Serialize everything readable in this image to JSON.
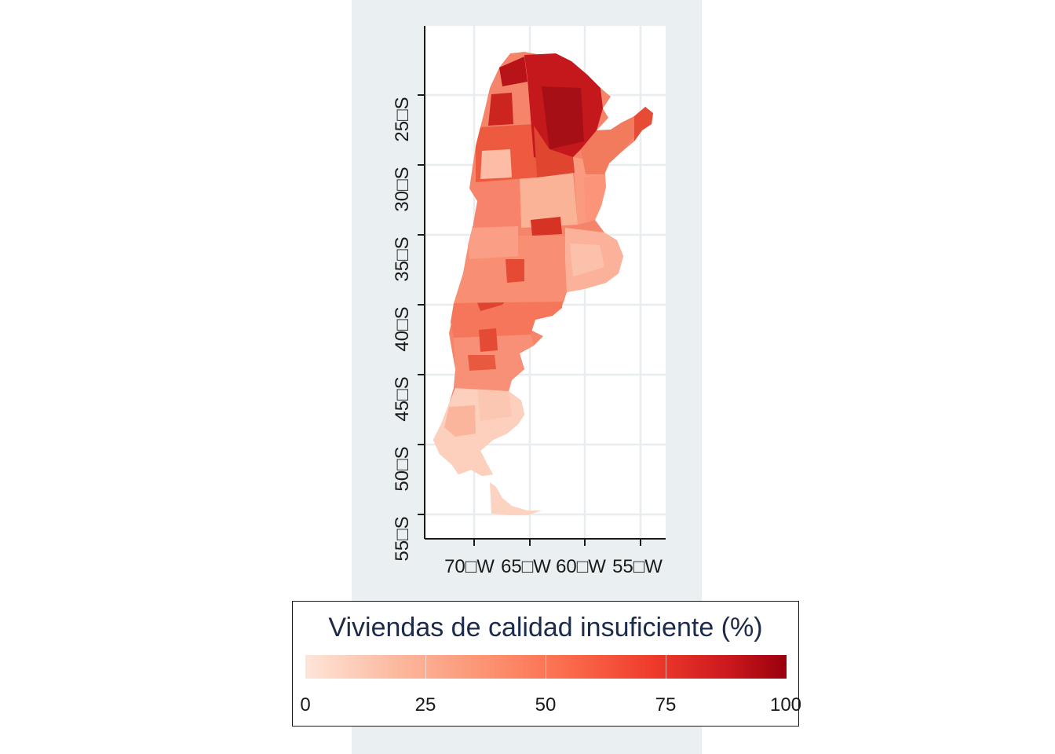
{
  "map": {
    "lat_labels": [
      "25□S",
      "30□S",
      "35□S",
      "40□S",
      "45□S",
      "50□S",
      "55□S"
    ],
    "lon_labels": [
      "70□W",
      "65□W",
      "60□W",
      "55□W"
    ]
  },
  "legend": {
    "title": "Viviendas de calidad insuficiente (%)",
    "tick_labels": [
      "0",
      "25",
      "50",
      "75",
      "100"
    ],
    "color_scale": [
      "#fee5d9",
      "#fcbba1",
      "#fc9272",
      "#fb6a4a",
      "#ef3b2c",
      "#cb181d",
      "#99000d"
    ],
    "range": [
      0,
      100
    ]
  }
}
